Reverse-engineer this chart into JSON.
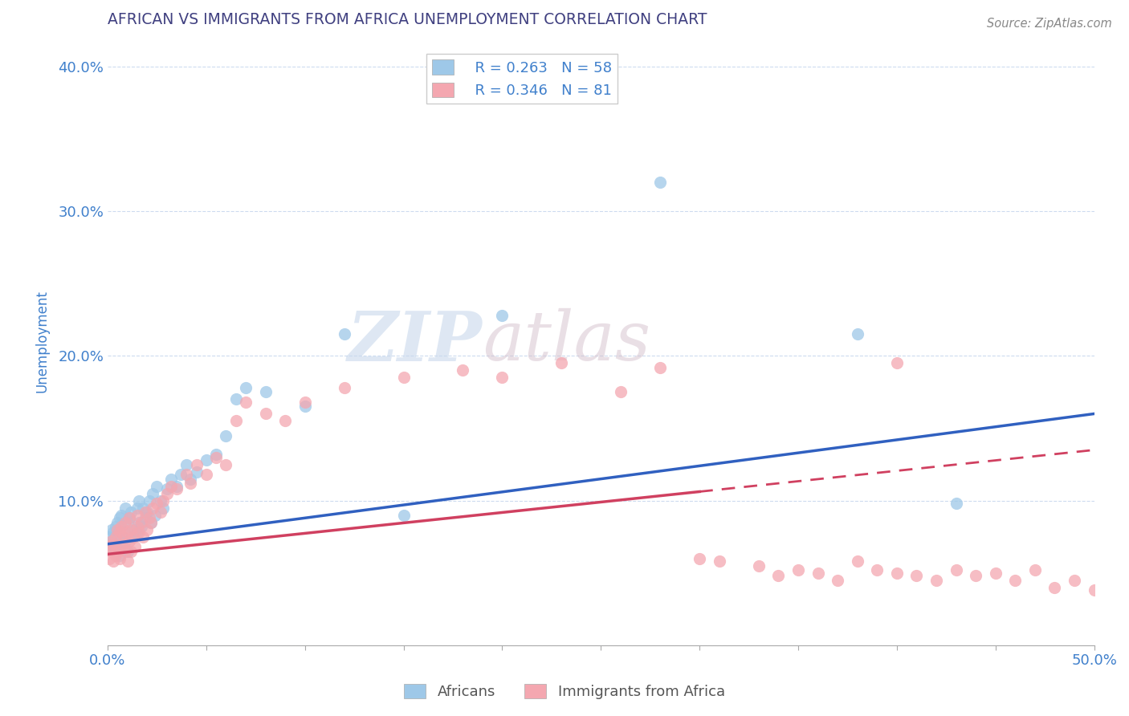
{
  "title": "AFRICAN VS IMMIGRANTS FROM AFRICA UNEMPLOYMENT CORRELATION CHART",
  "source": "Source: ZipAtlas.com",
  "ylabel": "Unemployment",
  "watermark_zip": "ZIP",
  "watermark_atlas": "atlas",
  "legend": {
    "africans_R": "0.263",
    "africans_N": "58",
    "immigrants_R": "0.346",
    "immigrants_N": "81"
  },
  "africans_color": "#9ec8e8",
  "immigrants_color": "#f4a7b0",
  "africans_line_color": "#3060c0",
  "immigrants_line_color_solid": "#d04060",
  "immigrants_line_color_dash": "#d04060",
  "grid_color": "#c8d8ee",
  "title_color": "#404080",
  "axis_label_color": "#4080cc",
  "background_color": "#ffffff",
  "xlim": [
    0.0,
    0.5
  ],
  "ylim": [
    0.0,
    0.42
  ],
  "africans_line_start": 0.07,
  "africans_line_end": 0.16,
  "immigrants_line_start": 0.063,
  "immigrants_line_end": 0.135,
  "africans_x": [
    0.001,
    0.002,
    0.002,
    0.003,
    0.003,
    0.004,
    0.004,
    0.005,
    0.005,
    0.006,
    0.006,
    0.007,
    0.007,
    0.008,
    0.008,
    0.009,
    0.009,
    0.01,
    0.01,
    0.011,
    0.012,
    0.013,
    0.014,
    0.015,
    0.015,
    0.016,
    0.016,
    0.017,
    0.018,
    0.019,
    0.02,
    0.021,
    0.022,
    0.023,
    0.024,
    0.025,
    0.027,
    0.028,
    0.03,
    0.032,
    0.035,
    0.037,
    0.04,
    0.042,
    0.045,
    0.05,
    0.055,
    0.06,
    0.065,
    0.07,
    0.08,
    0.1,
    0.12,
    0.15,
    0.2,
    0.28,
    0.38,
    0.43
  ],
  "africans_y": [
    0.075,
    0.072,
    0.08,
    0.068,
    0.078,
    0.065,
    0.082,
    0.07,
    0.085,
    0.062,
    0.088,
    0.074,
    0.09,
    0.068,
    0.079,
    0.072,
    0.095,
    0.065,
    0.085,
    0.088,
    0.092,
    0.075,
    0.08,
    0.078,
    0.095,
    0.085,
    0.1,
    0.082,
    0.095,
    0.088,
    0.092,
    0.1,
    0.085,
    0.105,
    0.09,
    0.11,
    0.1,
    0.095,
    0.108,
    0.115,
    0.11,
    0.118,
    0.125,
    0.115,
    0.12,
    0.128,
    0.132,
    0.145,
    0.17,
    0.178,
    0.175,
    0.165,
    0.215,
    0.09,
    0.228,
    0.32,
    0.215,
    0.098
  ],
  "immigrants_x": [
    0.001,
    0.001,
    0.002,
    0.002,
    0.003,
    0.003,
    0.004,
    0.004,
    0.005,
    0.005,
    0.006,
    0.006,
    0.007,
    0.007,
    0.008,
    0.008,
    0.009,
    0.009,
    0.01,
    0.01,
    0.011,
    0.011,
    0.012,
    0.012,
    0.013,
    0.014,
    0.015,
    0.015,
    0.016,
    0.017,
    0.018,
    0.019,
    0.02,
    0.021,
    0.022,
    0.023,
    0.025,
    0.027,
    0.028,
    0.03,
    0.032,
    0.035,
    0.04,
    0.042,
    0.045,
    0.05,
    0.055,
    0.06,
    0.065,
    0.07,
    0.08,
    0.09,
    0.1,
    0.12,
    0.15,
    0.18,
    0.2,
    0.23,
    0.26,
    0.28,
    0.3,
    0.31,
    0.33,
    0.34,
    0.35,
    0.36,
    0.37,
    0.38,
    0.39,
    0.4,
    0.4,
    0.41,
    0.42,
    0.43,
    0.44,
    0.45,
    0.46,
    0.47,
    0.48,
    0.49,
    0.5
  ],
  "immigrants_y": [
    0.06,
    0.068,
    0.065,
    0.072,
    0.058,
    0.07,
    0.062,
    0.075,
    0.065,
    0.08,
    0.06,
    0.078,
    0.068,
    0.082,
    0.07,
    0.075,
    0.065,
    0.085,
    0.058,
    0.078,
    0.072,
    0.088,
    0.065,
    0.08,
    0.075,
    0.068,
    0.082,
    0.09,
    0.078,
    0.085,
    0.075,
    0.092,
    0.08,
    0.088,
    0.085,
    0.095,
    0.098,
    0.092,
    0.1,
    0.105,
    0.11,
    0.108,
    0.118,
    0.112,
    0.125,
    0.118,
    0.13,
    0.125,
    0.155,
    0.168,
    0.16,
    0.155,
    0.168,
    0.178,
    0.185,
    0.19,
    0.185,
    0.195,
    0.175,
    0.192,
    0.06,
    0.058,
    0.055,
    0.048,
    0.052,
    0.05,
    0.045,
    0.058,
    0.052,
    0.05,
    0.195,
    0.048,
    0.045,
    0.052,
    0.048,
    0.05,
    0.045,
    0.052,
    0.04,
    0.045,
    0.038
  ]
}
